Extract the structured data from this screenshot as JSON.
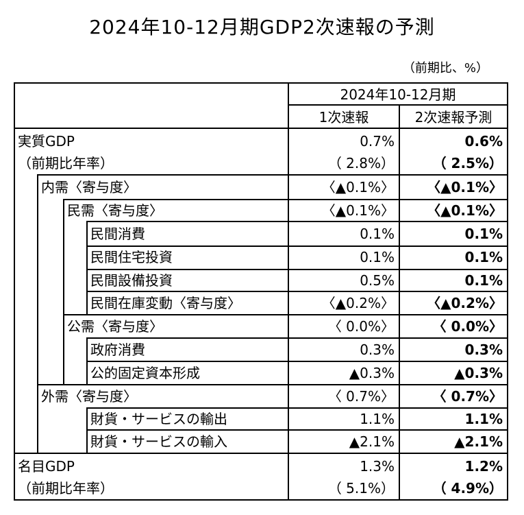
{
  "title": "2024年10-12月期GDP2次速報の予測",
  "unit_note": "（前期比、%）",
  "header": {
    "period": "2024年10-12月期",
    "col1": "1次速報",
    "col2": "2次速報予測"
  },
  "rows": {
    "real_gdp": {
      "label": "実質GDP",
      "v1": "0.7%",
      "v2": "0.6%"
    },
    "real_gdp_ann": {
      "label": "（前期比年率）",
      "v1": "（ 2.8%）",
      "v2": "（ 2.5%）"
    },
    "domestic": {
      "label": "内需〈寄与度〉",
      "v1": "〈▲0.1%〉",
      "v2": "〈▲0.1%〉"
    },
    "private": {
      "label": "民需〈寄与度〉",
      "v1": "〈▲0.1%〉",
      "v2": "〈▲0.1%〉"
    },
    "consumption": {
      "label": "民間消費",
      "v1": "0.1%",
      "v2": "0.1%"
    },
    "housing": {
      "label": "民間住宅投資",
      "v1": "0.1%",
      "v2": "0.1%"
    },
    "capex": {
      "label": "民間設備投資",
      "v1": "0.5%",
      "v2": "0.1%"
    },
    "inventory": {
      "label": "民間在庫変動〈寄与度〉",
      "v1": "〈▲0.2%〉",
      "v2": "〈▲0.2%〉"
    },
    "public": {
      "label": "公需〈寄与度〉",
      "v1": "〈 0.0%〉",
      "v2": "〈 0.0%〉"
    },
    "gov_consumption": {
      "label": "政府消費",
      "v1": "0.3%",
      "v2": "0.3%"
    },
    "public_invest": {
      "label": "公的固定資本形成",
      "v1": "▲0.3%",
      "v2": "▲0.3%"
    },
    "external": {
      "label": "外需〈寄与度〉",
      "v1": "〈 0.7%〉",
      "v2": "〈 0.7%〉"
    },
    "exports": {
      "label": "財貨・サービスの輸出",
      "v1": "1.1%",
      "v2": "1.1%"
    },
    "imports": {
      "label": "財貨・サービスの輸入",
      "v1": "▲2.1%",
      "v2": "▲2.1%"
    },
    "nominal_gdp": {
      "label": "名目GDP",
      "v1": "1.3%",
      "v2": "1.2%"
    },
    "nominal_gdp_ann": {
      "label": "（前期比年率）",
      "v1": "（ 5.1%）",
      "v2": "（ 4.9%）"
    }
  }
}
